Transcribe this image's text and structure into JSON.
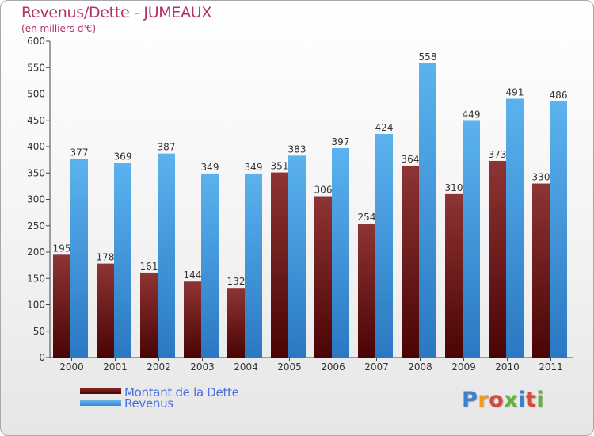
{
  "header": {
    "title": "Revenus/Dette - JUMEAUX",
    "subtitle": "(en milliers d'€)"
  },
  "legend": {
    "items": [
      {
        "label": "Montant de la Dette",
        "color": "#6b0f0f"
      },
      {
        "label": "Revenus",
        "color": "#4ea4e6"
      }
    ]
  },
  "logo": {
    "text": "Proxiti",
    "colors": [
      "#3b7fd1",
      "#f29a1f",
      "#d64a3a",
      "#63b33e",
      "#3b7fd1",
      "#d64a3a",
      "#63b33e"
    ]
  },
  "chart_data": {
    "type": "bar",
    "categories": [
      "2000",
      "2001",
      "2002",
      "2003",
      "2004",
      "2005",
      "2006",
      "2007",
      "2008",
      "2009",
      "2010",
      "2011"
    ],
    "series": [
      {
        "name": "Montant de la Dette",
        "values": [
          195,
          178,
          161,
          144,
          132,
          351,
          306,
          254,
          364,
          310,
          373,
          330
        ]
      },
      {
        "name": "Revenus",
        "values": [
          377,
          369,
          387,
          349,
          349,
          383,
          397,
          424,
          558,
          449,
          491,
          486
        ]
      }
    ],
    "ylim": [
      0,
      600
    ],
    "yticks": [
      0,
      50,
      100,
      150,
      200,
      250,
      300,
      350,
      400,
      450,
      500,
      550,
      600
    ],
    "grid": false,
    "legend_position": "bottom-left"
  }
}
